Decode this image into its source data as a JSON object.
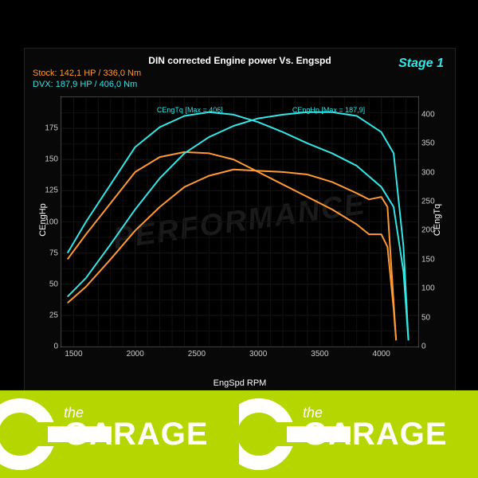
{
  "title": "DIN corrected Engine power Vs. Engspd",
  "stage_label": "Stage 1",
  "legend": {
    "stock_label": "Stock:",
    "stock_value": "142,1 HP / 336,0 Nm",
    "dvx_label": "DVX:",
    "dvx_value": "187,9 HP / 406,0 Nm"
  },
  "axes": {
    "x_label": "EngSpd RPM",
    "yl_label": "CEngHp",
    "yr_label": "CEngTq",
    "x_min": 1400,
    "x_max": 4300,
    "yl_min": 0,
    "yl_max": 200,
    "yr_min": 0,
    "yr_max": 430,
    "x_ticks": [
      1500,
      2000,
      2500,
      3000,
      3500,
      4000
    ],
    "yl_ticks": [
      0,
      25,
      50,
      75,
      100,
      125,
      150,
      175
    ],
    "yr_ticks": [
      0,
      50,
      100,
      150,
      200,
      250,
      300,
      350,
      400
    ]
  },
  "annotations": {
    "tq_max": {
      "text": "CEngTq [Max = 406]",
      "x": 2500,
      "yl": 185
    },
    "hp_max": {
      "text": "CEngHp [Max = 187,9]",
      "x": 3600,
      "yl": 185
    }
  },
  "colors": {
    "stock": "#ff9933",
    "dvx": "#33e6e6",
    "grid": "#222222",
    "axis": "#666666",
    "bg": "#000000"
  },
  "line_width": 2,
  "series": {
    "stock_hp": [
      [
        1450,
        35
      ],
      [
        1600,
        48
      ],
      [
        1800,
        70
      ],
      [
        2000,
        93
      ],
      [
        2200,
        112
      ],
      [
        2400,
        128
      ],
      [
        2600,
        137
      ],
      [
        2800,
        142
      ],
      [
        3000,
        141
      ],
      [
        3200,
        140
      ],
      [
        3400,
        138
      ],
      [
        3600,
        132
      ],
      [
        3800,
        123
      ],
      [
        3900,
        118
      ],
      [
        4000,
        120
      ],
      [
        4050,
        112
      ],
      [
        4100,
        35
      ],
      [
        4120,
        5
      ]
    ],
    "stock_tq": [
      [
        1450,
        70
      ],
      [
        1600,
        90
      ],
      [
        1800,
        115
      ],
      [
        2000,
        140
      ],
      [
        2200,
        152
      ],
      [
        2400,
        156
      ],
      [
        2600,
        155
      ],
      [
        2800,
        150
      ],
      [
        3000,
        140
      ],
      [
        3200,
        130
      ],
      [
        3400,
        120
      ],
      [
        3600,
        110
      ],
      [
        3800,
        98
      ],
      [
        3900,
        90
      ],
      [
        4000,
        90
      ],
      [
        4050,
        80
      ],
      [
        4100,
        30
      ],
      [
        4120,
        5
      ]
    ],
    "dvx_hp": [
      [
        1450,
        40
      ],
      [
        1600,
        55
      ],
      [
        1800,
        82
      ],
      [
        2000,
        110
      ],
      [
        2200,
        135
      ],
      [
        2400,
        155
      ],
      [
        2600,
        168
      ],
      [
        2800,
        177
      ],
      [
        3000,
        183
      ],
      [
        3200,
        186
      ],
      [
        3400,
        188
      ],
      [
        3600,
        188
      ],
      [
        3800,
        185
      ],
      [
        4000,
        172
      ],
      [
        4100,
        155
      ],
      [
        4180,
        80
      ],
      [
        4220,
        5
      ]
    ],
    "dvx_tq": [
      [
        1450,
        75
      ],
      [
        1600,
        100
      ],
      [
        1800,
        130
      ],
      [
        2000,
        160
      ],
      [
        2200,
        176
      ],
      [
        2400,
        185
      ],
      [
        2600,
        188
      ],
      [
        2800,
        186
      ],
      [
        3000,
        180
      ],
      [
        3200,
        172
      ],
      [
        3400,
        163
      ],
      [
        3600,
        155
      ],
      [
        3800,
        145
      ],
      [
        4000,
        128
      ],
      [
        4100,
        112
      ],
      [
        4180,
        60
      ],
      [
        4220,
        5
      ]
    ]
  },
  "logo": {
    "the": "the",
    "name": "GARAGE",
    "band_color": "#b6d600"
  }
}
